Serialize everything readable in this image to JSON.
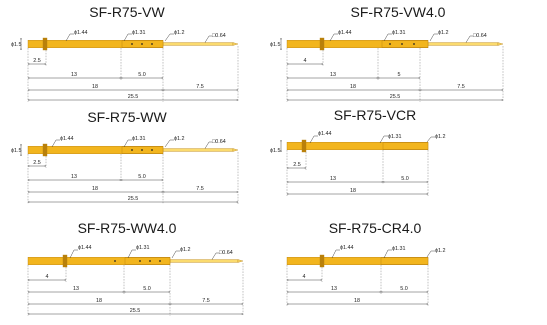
{
  "colors": {
    "pin_gold": "#F2B51E",
    "pin_light": "#FBDB6E",
    "pin_dark": "#B9800A",
    "hole": "#222222",
    "line": "#333333"
  },
  "diagrams": [
    {
      "title": "SF-R75-VW",
      "diam_left": "ϕ1.5",
      "d_collar": "ϕ1.44",
      "d_body": "ϕ1.31",
      "d_tube": "ϕ1.2",
      "d_tip": "□0.64",
      "dim_a": "2.5",
      "dim_b": "13",
      "dim_c": "5.0",
      "dim_d": "18",
      "dim_e": "7.5",
      "dim_f": "25.5"
    },
    {
      "title": "SF-R75-VW4.0",
      "diam_left": "ϕ1.5",
      "d_collar": "ϕ1.44",
      "d_body": "ϕ1.31",
      "d_tube": "ϕ1.2",
      "d_tip": "□0.64",
      "dim_a": "4",
      "dim_b": "13",
      "dim_c": "5",
      "dim_d": "18",
      "dim_e": "7.5",
      "dim_f": "25.5"
    },
    {
      "title": "SF-R75-WW",
      "diam_left": "ϕ1.5",
      "d_collar": "ϕ1.44",
      "d_body": "ϕ1.31",
      "d_tube": "ϕ1.2",
      "d_tip": "□0.64",
      "dim_a": "2.5",
      "dim_b": "13",
      "dim_c": "5.0",
      "dim_d": "18",
      "dim_e": "7.5",
      "dim_f": "25.5"
    },
    {
      "title": "SF-R75-VCR",
      "diam_left": "ϕ1.5",
      "d_collar": "ϕ1.44",
      "d_body": "ϕ1.31",
      "d_tube": "ϕ1.2",
      "dim_a": "2.5",
      "dim_b": "13",
      "dim_c": "5.0",
      "dim_d": "18"
    },
    {
      "title": "SF-R75-WW4.0",
      "d_collar": "ϕ1.44",
      "d_body": "ϕ1.31",
      "d_tube": "ϕ1.2",
      "d_tip": "□0.64",
      "dim_a": "4",
      "dim_b": "13",
      "dim_c": "5.0",
      "dim_d": "18",
      "dim_e": "7.5",
      "dim_f": "25.5"
    },
    {
      "title": "SF-R75-CR4.0",
      "d_collar": "ϕ1.44",
      "d_body": "ϕ1.31",
      "d_tube": "ϕ1.2",
      "dim_a": "4",
      "dim_b": "13",
      "dim_c": "5.0",
      "dim_d": "18"
    }
  ]
}
